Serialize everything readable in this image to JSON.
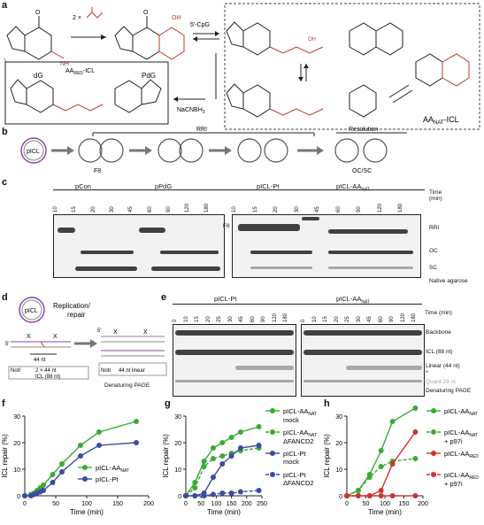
{
  "panels": {
    "a": "a",
    "b": "b",
    "c": "c",
    "d": "d",
    "e": "e",
    "f": "f",
    "g": "g",
    "h": "h"
  },
  "a": {
    "dG": "dG",
    "PdG": "PdG",
    "reagent": "2 ×",
    "nh2": "NH",
    "cpg": "5′-CpG",
    "oh": "OH",
    "aa_red": "AA",
    "aa_red_sub": "RED",
    "aa_red_suffix": "-ICL",
    "nacnbh3": "NaCNBH",
    "aa_nat": "AA",
    "aa_nat_sub": "NAT",
    "aa_nat_suffix": "-ICL"
  },
  "b": {
    "picl": "pICL",
    "rri": "RRI",
    "resolution": "Resolution",
    "f8": "F8",
    "ocsc": "OC/SC"
  },
  "c": {
    "groups": [
      "pCon",
      "pPdG",
      "pICL-Pt",
      "pICL-AA"
    ],
    "group4_sub": "NAT",
    "timepoints": [
      "10",
      "15",
      "20",
      "30",
      "45",
      "60",
      "90",
      "120",
      "180"
    ],
    "time_label": "Time",
    "time_unit": "(min)",
    "f8": "F8",
    "rri": "RRI",
    "oc": "OC",
    "sc": "SC",
    "gel": "Native agarose"
  },
  "d": {
    "picl": "pICL",
    "replication": "Replication/",
    "repair": "repair",
    "five1": "5′",
    "five2": "5′",
    "x": "X",
    "nt44": "44 nt",
    "notI_1": "NotI",
    "notI_2": "NotI",
    "box1_line1": "2 × 44 nt",
    "box1_line2": "ICL (88 nt)",
    "box2": "44 nt linear",
    "gel": "Denaturing PAGE"
  },
  "e": {
    "groups": [
      "pICL-Pt",
      "pICL-AA"
    ],
    "group2_sub": "NAT",
    "timepoints": [
      "0",
      "10",
      "15",
      "20",
      "25",
      "30",
      "45",
      "60",
      "90",
      "120",
      "180"
    ],
    "time_label": "Time (min)",
    "backbone": "Backbone",
    "icl": "ICL (88 nt)",
    "linear": "Linear (44 nt)",
    "quant": "Quant 28 nt",
    "star": "*",
    "gel": "Denaturing PAGE"
  },
  "chart_data": [
    {
      "type": "line",
      "panel": "f",
      "xlabel": "Time (min)",
      "ylabel": "ICL repair (%)",
      "xlim": [
        0,
        200
      ],
      "ylim": [
        0,
        30
      ],
      "xticks": [
        0,
        50,
        100,
        150,
        200
      ],
      "yticks": [
        0,
        10,
        20,
        30
      ],
      "series": [
        {
          "name": "pICL-AA",
          "name_sub": "NAT",
          "color": "#3aaa35",
          "x": [
            0,
            10,
            15,
            20,
            25,
            30,
            45,
            60,
            90,
            120,
            180
          ],
          "y": [
            0,
            0.5,
            1,
            2,
            3,
            4,
            8,
            12,
            19,
            24,
            28
          ]
        },
        {
          "name": "pICL-Pt",
          "color": "#3b4da0",
          "x": [
            0,
            10,
            15,
            20,
            25,
            30,
            45,
            60,
            90,
            120,
            180
          ],
          "y": [
            0,
            0,
            0.5,
            1,
            1.5,
            2,
            5,
            9,
            15,
            19,
            20
          ]
        }
      ]
    },
    {
      "type": "line",
      "panel": "g",
      "xlabel": "Time (min)",
      "ylabel": "ICL repair (%)",
      "xlim": [
        0,
        250
      ],
      "ylim": [
        0,
        30
      ],
      "xticks": [
        0,
        50,
        100,
        150,
        200,
        250
      ],
      "yticks": [
        0,
        10,
        20,
        30
      ],
      "series": [
        {
          "name": "pICL-AA",
          "name_sub": "NAT",
          "name_suffix": "mock",
          "color": "#3aaa35",
          "dashed": false,
          "x": [
            0,
            30,
            60,
            90,
            120,
            150,
            180,
            240
          ],
          "y": [
            0,
            5,
            13,
            18,
            20,
            22,
            24,
            26
          ]
        },
        {
          "name": "pICL-AA",
          "name_sub": "NAT",
          "name_suffix": "ΔFANCD2",
          "color": "#3aaa35",
          "dashed": true,
          "x": [
            0,
            30,
            60,
            90,
            120,
            150,
            180,
            240
          ],
          "y": [
            0,
            3,
            11,
            14,
            15,
            16,
            17,
            18
          ]
        },
        {
          "name": "pICL-Pt",
          "name_suffix": "mock",
          "color": "#3b4da0",
          "dashed": false,
          "x": [
            0,
            30,
            60,
            90,
            120,
            150,
            180,
            240
          ],
          "y": [
            0,
            0,
            1,
            7,
            12,
            15,
            18,
            19
          ]
        },
        {
          "name": "pICL-Pt",
          "name_suffix": "ΔFANCD2",
          "color": "#3b4da0",
          "dashed": true,
          "x": [
            0,
            30,
            60,
            90,
            120,
            150,
            180,
            240
          ],
          "y": [
            0,
            0,
            0,
            0.5,
            1,
            1,
            1.5,
            2
          ]
        }
      ]
    },
    {
      "type": "line",
      "panel": "h",
      "xlabel": "Time (min)",
      "ylabel": "ICL repair (%)",
      "xlim": [
        0,
        200
      ],
      "ylim": [
        0,
        30
      ],
      "xticks": [
        0,
        50,
        100,
        150,
        200
      ],
      "yticks": [
        0,
        10,
        20,
        30
      ],
      "series": [
        {
          "name": "pICL-AA",
          "name_sub": "NAT",
          "color": "#3aaa35",
          "dashed": false,
          "x": [
            0,
            30,
            60,
            90,
            120,
            180
          ],
          "y": [
            0,
            2,
            8,
            17,
            28,
            33
          ]
        },
        {
          "name": "pICL-AA",
          "name_sub": "NAT",
          "name_suffix": "+ p97i",
          "color": "#3aaa35",
          "dashed": true,
          "x": [
            0,
            30,
            60,
            90,
            120,
            180
          ],
          "y": [
            0,
            2,
            7,
            11,
            13,
            14
          ]
        },
        {
          "name": "pICL-AA",
          "name_sub": "RED",
          "color": "#d2322d",
          "dashed": false,
          "x": [
            0,
            30,
            60,
            90,
            120,
            180
          ],
          "y": [
            0,
            0,
            0,
            2,
            12,
            24
          ]
        },
        {
          "name": "pICL-AA",
          "name_sub": "RED",
          "name_suffix": "+ p97i",
          "color": "#d2322d",
          "dashed": true,
          "x": [
            0,
            30,
            60,
            90,
            120,
            180
          ],
          "y": [
            0,
            0,
            0,
            0,
            0,
            0
          ]
        }
      ]
    }
  ]
}
